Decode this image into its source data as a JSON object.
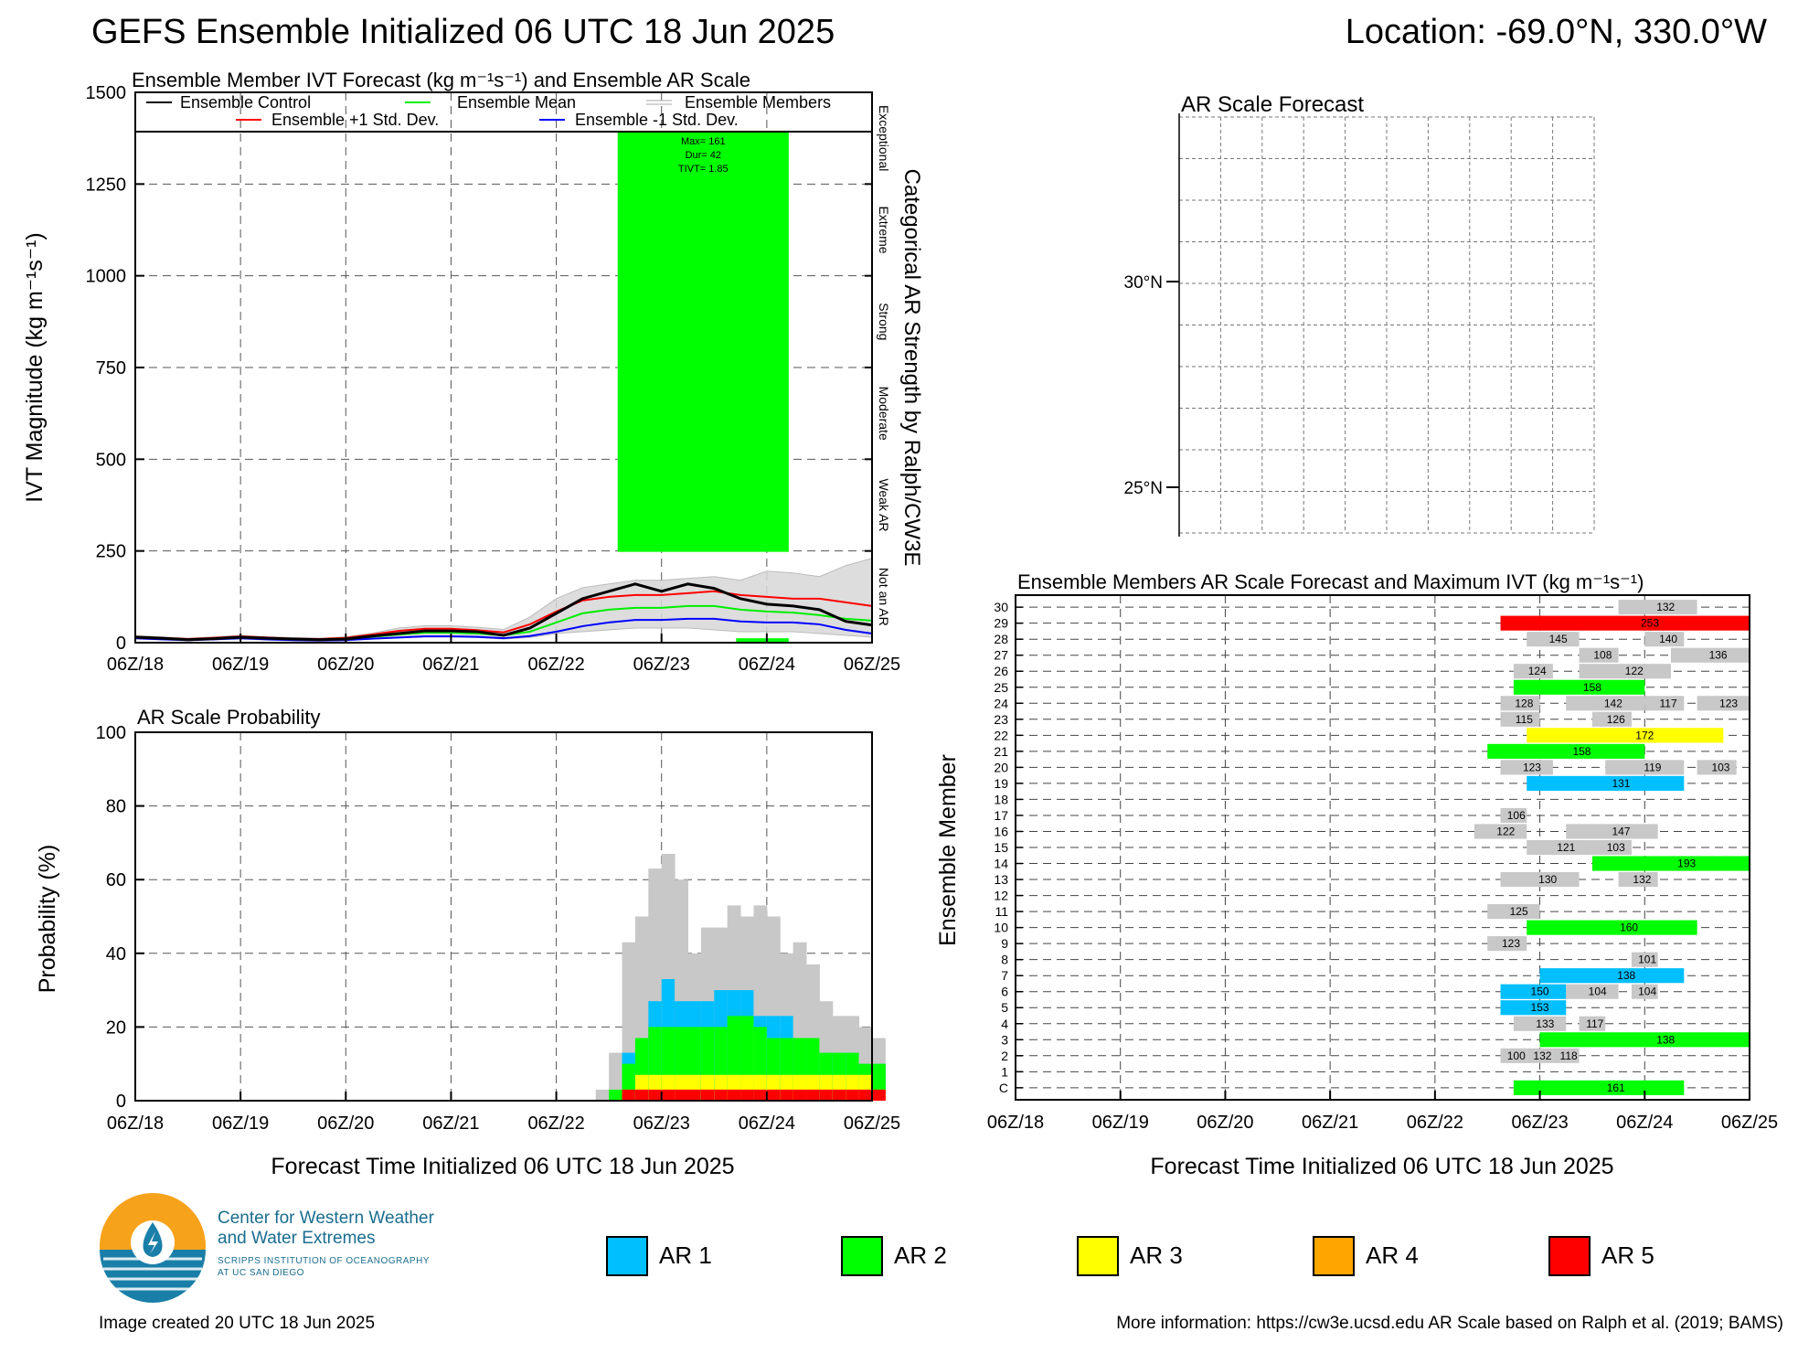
{
  "header": {
    "title": "GEFS Ensemble Initialized 06 UTC 18 Jun 2025",
    "location": "Location: -69.0°N, 330.0°W"
  },
  "time_ticks": [
    "06Z/18",
    "06Z/19",
    "06Z/20",
    "06Z/21",
    "06Z/22",
    "06Z/23",
    "06Z/24",
    "06Z/25"
  ],
  "x_axis_label": "Forecast Time Initialized 06 UTC 18 Jun 2025",
  "colors": {
    "ar1": "#00bfff",
    "ar2": "#00ff00",
    "ar3": "#ffff00",
    "ar4": "#ffa500",
    "ar5": "#ff0000",
    "gray": "#c8c8c8",
    "control": "#000000",
    "mean": "#00ee00",
    "plus_sd": "#ff0000",
    "minus_sd": "#0000ff"
  },
  "legend": [
    {
      "label": "AR 1",
      "color": "#00bfff"
    },
    {
      "label": "AR 2",
      "color": "#00ff00"
    },
    {
      "label": "AR 3",
      "color": "#ffff00"
    },
    {
      "label": "AR 4",
      "color": "#ffa500"
    },
    {
      "label": "AR 5",
      "color": "#ff0000"
    }
  ],
  "footer": {
    "created": "Image created 20 UTC 18 Jun 2025",
    "more_info": "More information: https://cw3e.ucsd.edu AR Scale based on Ralph et al. (2019; BAMS)"
  },
  "logo": {
    "line1": "Center for Western Weather",
    "line2": "and Water Extremes",
    "sub1": "SCRIPPS INSTITUTION OF OCEANOGRAPHY",
    "sub2": "AT UC SAN DIEGO"
  },
  "chart_data": [
    {
      "id": "ivt",
      "type": "line",
      "title": "Ensemble Member IVT Forecast (kg m⁻¹s⁻¹) and Ensemble AR Scale",
      "ylabel": "IVT Magnitude (kg m⁻¹s⁻¹)",
      "right_label": "Categorical AR Strength by Ralph/CW3E",
      "categories": [
        "Not an AR",
        "Weak AR",
        "Moderate",
        "Strong",
        "Extreme",
        "Exceptional"
      ],
      "ylim": [
        0,
        1500
      ],
      "yticks": [
        0,
        250,
        500,
        750,
        1000,
        1250,
        1500
      ],
      "xlim": [
        0,
        168
      ],
      "legend_labels": {
        "control": "Ensemble Control",
        "mean": "Ensemble Mean",
        "members": "Ensemble Members",
        "plus_sd": "Ensemble +1 Std. Dev.",
        "minus_sd": "Ensemble -1 Std. Dev."
      },
      "x": [
        0,
        6,
        12,
        18,
        24,
        30,
        36,
        42,
        48,
        54,
        60,
        66,
        72,
        78,
        84,
        90,
        96,
        102,
        108,
        114,
        120,
        126,
        132,
        138,
        144,
        150,
        156,
        162,
        168
      ],
      "series": [
        {
          "name": "Ensemble Control",
          "key": "control",
          "values": [
            15,
            12,
            8,
            11,
            15,
            12,
            10,
            8,
            10,
            18,
            25,
            32,
            32,
            30,
            20,
            40,
            80,
            120,
            140,
            160,
            140,
            160,
            148,
            120,
            105,
            100,
            90,
            58,
            48
          ]
        },
        {
          "name": "Ensemble Mean",
          "key": "mean",
          "values": [
            14,
            11,
            9,
            11,
            14,
            11,
            9,
            8,
            10,
            16,
            22,
            27,
            27,
            25,
            20,
            30,
            55,
            80,
            90,
            95,
            95,
            100,
            100,
            90,
            85,
            82,
            75,
            65,
            60
          ]
        },
        {
          "name": "Ensemble +1 Std. Dev.",
          "key": "plus_sd",
          "values": [
            16,
            13,
            10,
            13,
            17,
            14,
            11,
            10,
            13,
            22,
            32,
            38,
            38,
            34,
            28,
            50,
            85,
            115,
            125,
            130,
            130,
            135,
            140,
            130,
            125,
            120,
            120,
            110,
            100
          ]
        },
        {
          "name": "Ensemble -1 Std. Dev.",
          "key": "minus_sd",
          "values": [
            12,
            9,
            7,
            9,
            12,
            9,
            7,
            6,
            7,
            11,
            14,
            17,
            17,
            16,
            12,
            18,
            30,
            45,
            55,
            62,
            62,
            65,
            65,
            58,
            55,
            55,
            50,
            35,
            25
          ]
        }
      ],
      "members_band": {
        "lower": [
          10,
          8,
          5,
          8,
          10,
          7,
          5,
          4,
          5,
          10,
          14,
          16,
          16,
          14,
          10,
          14,
          25,
          30,
          35,
          40,
          40,
          40,
          35,
          30,
          30,
          30,
          25,
          20,
          15
        ],
        "upper": [
          20,
          16,
          12,
          16,
          20,
          16,
          14,
          12,
          16,
          26,
          40,
          46,
          46,
          42,
          36,
          70,
          120,
          150,
          160,
          170,
          170,
          175,
          180,
          170,
          195,
          190,
          180,
          210,
          230
        ]
      },
      "ar_box": {
        "category": "AR 2",
        "color": "#00ff00",
        "x_start": 110,
        "x_end": 149,
        "annotation": [
          "Max= 161",
          "Dur= 42",
          "TIVT= 1.85"
        ]
      },
      "ar_strip": {
        "x_start": 137,
        "x_end": 149,
        "color": "#00ff00"
      }
    },
    {
      "id": "prob",
      "type": "area",
      "title": "AR Scale Probability",
      "ylabel": "Probability (%)",
      "ylim": [
        0,
        100
      ],
      "yticks": [
        0,
        20,
        40,
        60,
        80,
        100
      ],
      "xlim": [
        0,
        168
      ],
      "bin_hours": 3,
      "bins_start": 105,
      "any_ar": [
        3,
        13,
        43,
        50,
        63,
        67,
        60,
        40,
        47,
        47,
        53,
        50,
        53,
        50,
        40,
        43,
        37,
        27,
        23,
        23,
        20,
        17
      ],
      "ar2_plus": [
        0,
        3,
        10,
        17,
        20,
        20,
        20,
        20,
        20,
        20,
        23,
        23,
        20,
        17,
        17,
        17,
        17,
        13,
        13,
        13,
        10,
        10
      ],
      "ar3_plus": [
        0,
        0,
        3,
        7,
        7,
        7,
        7,
        7,
        7,
        7,
        7,
        7,
        7,
        7,
        7,
        7,
        7,
        7,
        7,
        7,
        7,
        3
      ],
      "ar5": [
        0,
        0,
        3,
        3,
        3,
        3,
        3,
        3,
        3,
        3,
        3,
        3,
        3,
        3,
        3,
        3,
        3,
        3,
        3,
        3,
        3,
        3
      ],
      "ar1_total": [
        0,
        0,
        13,
        17,
        27,
        33,
        27,
        27,
        27,
        30,
        30,
        30,
        23,
        23,
        23,
        17,
        17,
        13,
        13,
        13,
        10,
        10
      ]
    },
    {
      "id": "map",
      "type": "map",
      "title": "AR Scale Forecast",
      "lat_labels": [
        "30°N",
        "25°N"
      ]
    },
    {
      "id": "members",
      "type": "heatmap",
      "title": "Ensemble Members AR Scale Forecast and Maximum IVT (kg m⁻¹s⁻¹)",
      "ylabel": "Ensemble Member",
      "row_labels": [
        "C",
        "1",
        "2",
        "3",
        "4",
        "5",
        "6",
        "7",
        "8",
        "9",
        "10",
        "11",
        "12",
        "13",
        "14",
        "15",
        "16",
        "17",
        "18",
        "19",
        "20",
        "21",
        "22",
        "23",
        "24",
        "25",
        "26",
        "27",
        "28",
        "29",
        "30"
      ],
      "xlim": [
        0,
        168
      ],
      "bars": [
        {
          "row": "C",
          "start": 114,
          "end": 153,
          "cat": 2,
          "label": "161"
        },
        {
          "row": "2",
          "start": 111,
          "end": 117,
          "cat": 0,
          "label": "100"
        },
        {
          "row": "2",
          "start": 117,
          "end": 123,
          "cat": 0,
          "label": "132"
        },
        {
          "row": "2",
          "start": 123,
          "end": 129,
          "cat": 0,
          "label": "118"
        },
        {
          "row": "3",
          "start": 120,
          "end": 168,
          "cat": 2,
          "label": "138"
        },
        {
          "row": "4",
          "start": 114,
          "end": 126,
          "cat": 0,
          "label": "133"
        },
        {
          "row": "4",
          "start": 129,
          "end": 135,
          "cat": 0,
          "label": "117"
        },
        {
          "row": "5",
          "start": 111,
          "end": 126,
          "cat": 1,
          "label": "153"
        },
        {
          "row": "6",
          "start": 111,
          "end": 126,
          "cat": 1,
          "label": "150"
        },
        {
          "row": "6",
          "start": 126,
          "end": 138,
          "cat": 0,
          "label": "104"
        },
        {
          "row": "6",
          "start": 141,
          "end": 147,
          "cat": 0,
          "label": "104"
        },
        {
          "row": "7",
          "start": 120,
          "end": 153,
          "cat": 1,
          "label": "138"
        },
        {
          "row": "8",
          "start": 141,
          "end": 147,
          "cat": 0,
          "label": "101"
        },
        {
          "row": "9",
          "start": 108,
          "end": 117,
          "cat": 0,
          "label": "123"
        },
        {
          "row": "10",
          "start": 117,
          "end": 156,
          "cat": 2,
          "label": "160"
        },
        {
          "row": "11",
          "start": 108,
          "end": 120,
          "cat": 0,
          "label": "125"
        },
        {
          "row": "13",
          "start": 111,
          "end": 129,
          "cat": 0,
          "label": "130"
        },
        {
          "row": "13",
          "start": 138,
          "end": 147,
          "cat": 0,
          "label": "132"
        },
        {
          "row": "14",
          "start": 132,
          "end": 168,
          "cat": 2,
          "label": "193"
        },
        {
          "row": "15",
          "start": 117,
          "end": 132,
          "cat": 0,
          "label": "121"
        },
        {
          "row": "15",
          "start": 132,
          "end": 141,
          "cat": 0,
          "label": "103"
        },
        {
          "row": "16",
          "start": 105,
          "end": 117,
          "cat": 0,
          "label": "122"
        },
        {
          "row": "16",
          "start": 126,
          "end": 147,
          "cat": 0,
          "label": "147"
        },
        {
          "row": "17",
          "start": 111,
          "end": 117,
          "cat": 0,
          "label": "106"
        },
        {
          "row": "19",
          "start": 117,
          "end": 153,
          "cat": 1,
          "label": "131"
        },
        {
          "row": "20",
          "start": 111,
          "end": 123,
          "cat": 0,
          "label": "123"
        },
        {
          "row": "20",
          "start": 135,
          "end": 153,
          "cat": 0,
          "label": "119"
        },
        {
          "row": "20",
          "start": 156,
          "end": 165,
          "cat": 0,
          "label": "103"
        },
        {
          "row": "21",
          "start": 108,
          "end": 144,
          "cat": 2,
          "label": "158"
        },
        {
          "row": "22",
          "start": 117,
          "end": 162,
          "cat": 3,
          "label": "172"
        },
        {
          "row": "23",
          "start": 111,
          "end": 120,
          "cat": 0,
          "label": "115"
        },
        {
          "row": "23",
          "start": 132,
          "end": 141,
          "cat": 0,
          "label": "126"
        },
        {
          "row": "24",
          "start": 111,
          "end": 120,
          "cat": 0,
          "label": "128"
        },
        {
          "row": "24",
          "start": 126,
          "end": 144,
          "cat": 0,
          "label": "142"
        },
        {
          "row": "24",
          "start": 144,
          "end": 153,
          "cat": 0,
          "label": "117"
        },
        {
          "row": "24",
          "start": 156,
          "end": 168,
          "cat": 0,
          "label": "123"
        },
        {
          "row": "25",
          "start": 114,
          "end": 144,
          "cat": 2,
          "label": "158"
        },
        {
          "row": "26",
          "start": 114,
          "end": 123,
          "cat": 0,
          "label": "124"
        },
        {
          "row": "26",
          "start": 129,
          "end": 150,
          "cat": 0,
          "label": "122"
        },
        {
          "row": "27",
          "start": 129,
          "end": 138,
          "cat": 0,
          "label": "108"
        },
        {
          "row": "27",
          "start": 150,
          "end": 168,
          "cat": 0,
          "label": "136"
        },
        {
          "row": "28",
          "start": 117,
          "end": 129,
          "cat": 0,
          "label": "145"
        },
        {
          "row": "28",
          "start": 144,
          "end": 153,
          "cat": 0,
          "label": "140"
        },
        {
          "row": "29",
          "start": 111,
          "end": 168,
          "cat": 5,
          "label": "253"
        },
        {
          "row": "30",
          "start": 138,
          "end": 156,
          "cat": 0,
          "label": "132"
        }
      ]
    }
  ]
}
